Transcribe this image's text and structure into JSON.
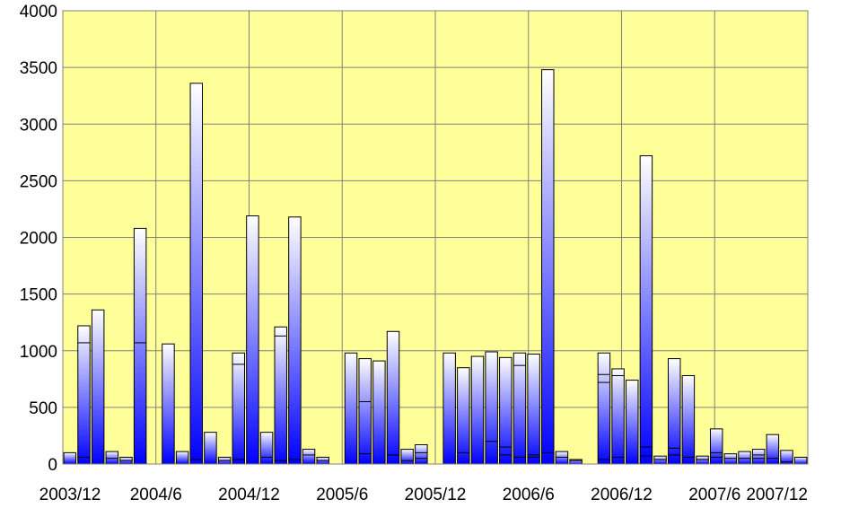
{
  "chart_data": {
    "type": "bar",
    "stacked": true,
    "ylim": [
      0,
      4000
    ],
    "yticks": [
      0,
      500,
      1000,
      1500,
      2000,
      2500,
      3000,
      3500,
      4000
    ],
    "ytick_labels": [
      "0",
      "500",
      "1000",
      "1500",
      "2000",
      "2500",
      "3000",
      "3500",
      "4000"
    ],
    "xtick_labels": [
      "2003/12",
      "2004/6",
      "2004/12",
      "2005/6",
      "2005/12",
      "2006/6",
      "2006/12",
      "2007/6",
      "2007/12"
    ],
    "grid": true,
    "plot_background": "#FFFF99",
    "bar_gradient": [
      "#0000FF",
      "#FFFFFF"
    ],
    "totals": [
      100,
      1220,
      1360,
      110,
      60,
      2080,
      0,
      1060,
      110,
      3360,
      280,
      60,
      980,
      2190,
      280,
      1210,
      2180,
      130,
      60,
      0,
      980,
      930,
      910,
      1170,
      130,
      170,
      0,
      980,
      850,
      950,
      990,
      940,
      980,
      970,
      3480,
      110,
      40,
      0,
      980,
      840,
      740,
      2720,
      70,
      930,
      780,
      70,
      310,
      90,
      110,
      130,
      260,
      120,
      60
    ],
    "segment_breaks": [
      [],
      [
        60,
        1070
      ],
      [],
      [
        50
      ],
      [
        30
      ],
      [
        1070
      ],
      [],
      [],
      [],
      [
        40
      ],
      [],
      [
        30
      ],
      [
        40,
        880
      ],
      [],
      [
        60
      ],
      [
        30,
        1130
      ],
      [
        40
      ],
      [
        80
      ],
      [
        30
      ],
      [],
      [],
      [
        90,
        550
      ],
      [],
      [
        80
      ],
      [
        30
      ],
      [
        50,
        100
      ],
      [],
      [],
      [
        100
      ],
      [],
      [
        200
      ],
      [
        80,
        150
      ],
      [
        60,
        870
      ],
      [
        60,
        80
      ],
      [
        100
      ],
      [
        60
      ],
      [
        30
      ],
      [],
      [
        40,
        720,
        790
      ],
      [
        60,
        780
      ],
      [],
      [
        70,
        150
      ],
      [
        40
      ],
      [
        80,
        140
      ],
      [
        60
      ],
      [
        40
      ],
      [
        60,
        100
      ],
      [
        50
      ],
      [
        50
      ],
      [
        50,
        80
      ],
      [
        50
      ],
      [
        20
      ],
      []
    ]
  }
}
